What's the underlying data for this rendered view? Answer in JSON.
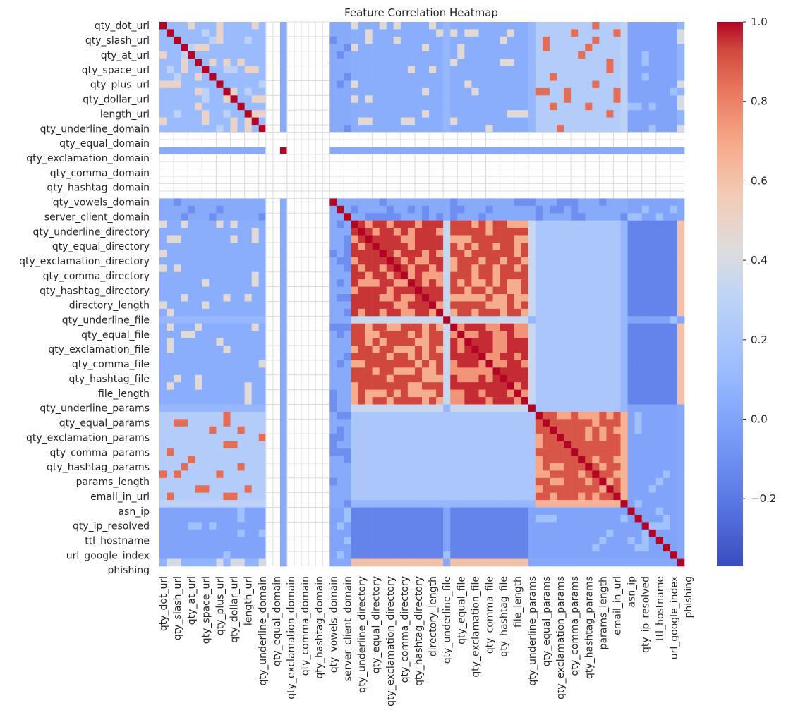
{
  "chart_data": {
    "type": "heatmap",
    "title": "Feature Correlation Heatmap",
    "colormap": "coolwarm",
    "grid": "light gray lines on missing (NaN) cells",
    "value_range": [
      -0.37,
      1.0
    ],
    "colorbar_ticks": [
      1.0,
      0.8,
      0.6,
      0.4,
      0.2,
      0.0,
      -0.2
    ],
    "colorbar_tick_labels": [
      "1.0",
      "0.8",
      "0.6",
      "0.4",
      "0.2",
      "0.0",
      "−0.2"
    ],
    "row_tick_labels": [
      "qty_dot_url",
      "qty_slash_url",
      "qty_at_url",
      "qty_space_url",
      "qty_plus_url",
      "qty_dollar_url",
      "length_url",
      "qty_underline_domain",
      "qty_equal_domain",
      "qty_exclamation_domain",
      "qty_comma_domain",
      "qty_hashtag_domain",
      "qty_vowels_domain",
      "server_client_domain",
      "qty_underline_directory",
      "qty_equal_directory",
      "qty_exclamation_directory",
      "qty_comma_directory",
      "qty_hashtag_directory",
      "directory_length",
      "qty_underline_file",
      "qty_equal_file",
      "qty_exclamation_file",
      "qty_comma_file",
      "qty_hashtag_file",
      "file_length",
      "qty_underline_params",
      "qty_equal_params",
      "qty_exclamation_params",
      "qty_comma_params",
      "qty_hashtag_params",
      "params_length",
      "email_in_url",
      "asn_ip",
      "qty_ip_resolved",
      "ttl_hostname",
      "url_google_index",
      "phishing"
    ],
    "col_tick_labels": [
      "qty_dot_url",
      "qty_slash_url",
      "qty_at_url",
      "qty_space_url",
      "qty_plus_url",
      "qty_dollar_url",
      "length_url",
      "qty_underline_domain",
      "qty_equal_domain",
      "qty_exclamation_domain",
      "qty_comma_domain",
      "qty_hashtag_domain",
      "qty_vowels_domain",
      "server_client_domain",
      "qty_underline_directory",
      "qty_equal_directory",
      "qty_exclamation_directory",
      "qty_comma_directory",
      "qty_hashtag_directory",
      "directory_length",
      "qty_underline_file",
      "qty_equal_file",
      "qty_exclamation_file",
      "qty_comma_file",
      "qty_hashtag_file",
      "file_length",
      "qty_underline_params",
      "qty_equal_params",
      "qty_exclamation_params",
      "qty_comma_params",
      "qty_hashtag_params",
      "params_length",
      "email_in_url",
      "asn_ip",
      "qty_ip_resolved",
      "ttl_hostname",
      "url_google_index",
      "phishing"
    ],
    "block_values": {
      "url_block_internal": 0.1,
      "nan_groups": [
        "qty_underline_domain to qty_hashtag_domain (except qty_equal_domain row/column as shown)"
      ],
      "directory_block": 0.95,
      "file_block": 0.95,
      "directory_file_cross": 0.7,
      "params_block": 0.85,
      "url_vs_params": 0.25,
      "phishing_vs_directory_file": 0.6,
      "phishing_vs_other": 0.05,
      "diagonal": 1.0
    }
  }
}
